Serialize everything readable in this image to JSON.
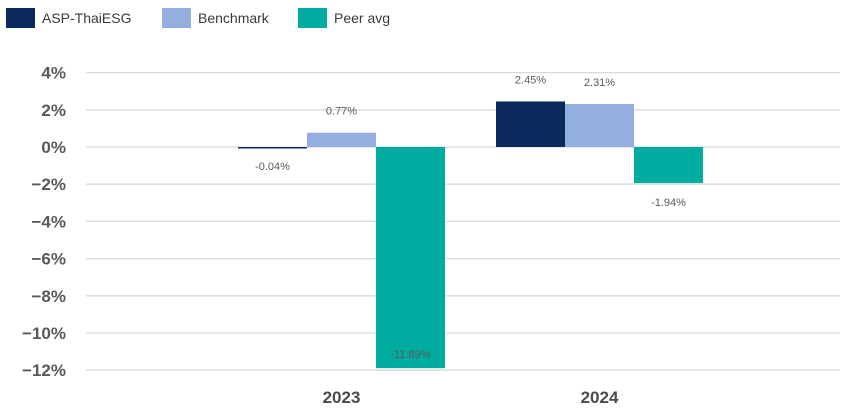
{
  "chart_data": {
    "type": "bar",
    "categories": [
      "2023",
      "2024"
    ],
    "series": [
      {
        "name": "ASP-ThaiESG",
        "color": "#0a2a5e",
        "values": [
          -0.04,
          2.45
        ],
        "labels": [
          "-0.04%",
          "2.45%"
        ]
      },
      {
        "name": "Benchmark",
        "color": "#94aee0",
        "values": [
          0.77,
          2.31
        ],
        "labels": [
          "0.77%",
          "2.31%"
        ]
      },
      {
        "name": "Peer avg",
        "color": "#00ac9f",
        "values": [
          -11.89,
          -1.94
        ],
        "labels": [
          "-11.89%",
          "-1.94%"
        ]
      }
    ],
    "yticks": [
      4,
      2,
      0,
      -2,
      -4,
      -6,
      -8,
      -10,
      -12
    ],
    "ytick_labels": [
      "4%",
      "2%",
      "0%",
      "−2%",
      "−4%",
      "−6%",
      "−8%",
      "−10%",
      "−12%"
    ],
    "ylim": [
      -12,
      4
    ],
    "grid": true,
    "legend_position": "top-left"
  }
}
